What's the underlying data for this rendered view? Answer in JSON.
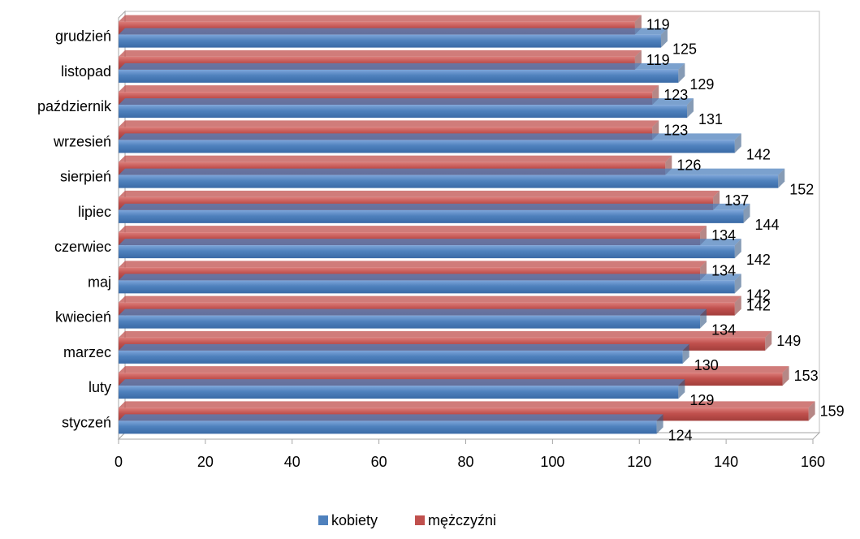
{
  "chart_data": {
    "type": "bar",
    "orientation": "horizontal",
    "style": "3d",
    "title": "",
    "xlabel": "",
    "ylabel": "",
    "categories": [
      "styczeń",
      "luty",
      "marzec",
      "kwiecień",
      "maj",
      "czerwiec",
      "lipiec",
      "sierpień",
      "wrzesień",
      "październik",
      "listopad",
      "grudzień"
    ],
    "series": [
      {
        "name": "kobiety",
        "color": "#4F81BD",
        "values": [
          124,
          129,
          130,
          134,
          142,
          142,
          144,
          152,
          142,
          131,
          129,
          125
        ]
      },
      {
        "name": "mężczyźni",
        "color": "#C0504D",
        "values": [
          159,
          153,
          149,
          142,
          134,
          134,
          137,
          126,
          123,
          123,
          119,
          119
        ]
      }
    ],
    "xlim": [
      0,
      160
    ],
    "xticks": [
      0,
      20,
      40,
      60,
      80,
      100,
      120,
      140,
      160
    ],
    "grid": false,
    "legend_position": "bottom",
    "data_labels": true
  }
}
